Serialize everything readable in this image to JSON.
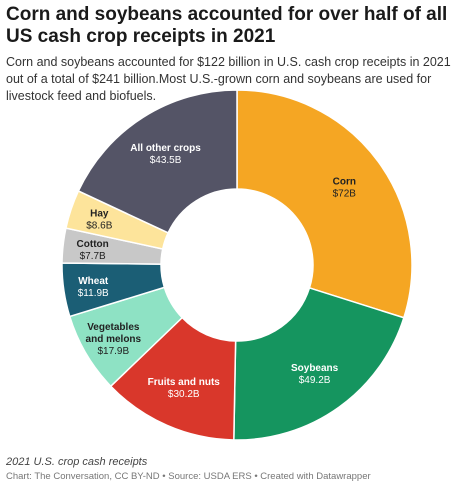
{
  "header": {
    "title": "Corn and soybeans accounted for over half of all US cash crop receipts in 2021",
    "subtitle": "Corn and soybeans accounted for $122 billion in U.S. cash crop receipts in 2021 out of a total of $241 billion.Most U.S.-grown corn and soybeans are used for livestock feed and biofuels."
  },
  "chart_data": {
    "type": "pie",
    "variant": "donut",
    "unit": "billion USD",
    "slices": [
      {
        "label": "Corn",
        "value": 72,
        "value_label": "$72B",
        "color": "#f5a623"
      },
      {
        "label": "Soybeans",
        "value": 49.2,
        "value_label": "$49.2B",
        "color": "#15955f"
      },
      {
        "label": "Fruits and nuts",
        "value": 30.2,
        "value_label": "$30.2B",
        "color": "#d9372b"
      },
      {
        "label": "Vegetables and melons",
        "value": 17.9,
        "value_label": "$17.9B",
        "color": "#8ee2c4"
      },
      {
        "label": "Wheat",
        "value": 11.9,
        "value_label": "$11.9B",
        "color": "#1b5e75"
      },
      {
        "label": "Cotton",
        "value": 7.7,
        "value_label": "$7.7B",
        "color": "#c8c8c8"
      },
      {
        "label": "Hay",
        "value": 8.6,
        "value_label": "$8.6B",
        "color": "#fde49b"
      },
      {
        "label": "All other crops",
        "value": 43.5,
        "value_label": "$43.5B",
        "color": "#545466"
      }
    ],
    "legend": "none"
  },
  "caption": "2021 U.S. crop cash receipts",
  "footer": "Chart: The Conversation, CC BY-ND • Source: USDA ERS • Created with Datawrapper"
}
